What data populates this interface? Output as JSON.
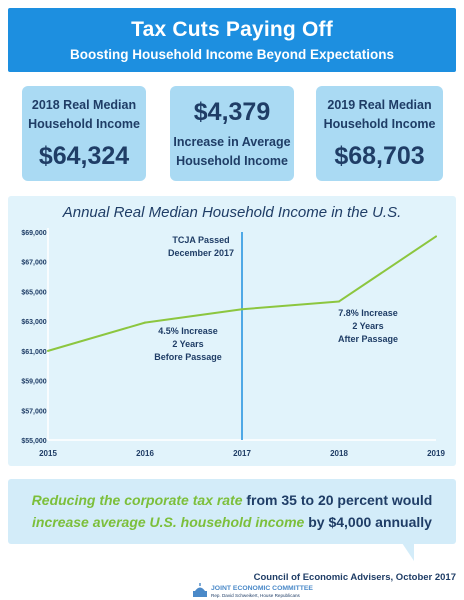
{
  "header": {
    "title": "Tax Cuts Paying Off",
    "subtitle": "Boosting Household Income Beyond Expectations"
  },
  "stats": [
    {
      "label_line1": "2018 Real Median",
      "label_line2": "Household Income",
      "value": "$64,324"
    },
    {
      "value": "$4,379",
      "label_line1": "Increase in Average",
      "label_line2": "Household Income"
    },
    {
      "label_line1": "2019 Real Median",
      "label_line2": "Household Income",
      "value": "$68,703"
    }
  ],
  "chart_data": {
    "type": "line",
    "title": "Annual Real Median Household Income in the U.S.",
    "xlabel": "",
    "ylabel": "",
    "x": [
      2015,
      2016,
      2017,
      2018,
      2019
    ],
    "x_tick_labels": [
      "2015",
      "2016",
      "2017",
      "2018",
      "2019"
    ],
    "series": [
      {
        "values": [
          61000,
          62900,
          63800,
          64324,
          68703
        ]
      }
    ],
    "ylim": [
      55000,
      69000
    ],
    "y_ticks": [
      55000,
      57000,
      59000,
      61000,
      63000,
      65000,
      67000,
      69000
    ],
    "y_tick_labels": [
      "$55,000",
      "$57,000",
      "$59,000",
      "$61,000",
      "$63,000",
      "$65,000",
      "$67,000",
      "$69,000"
    ],
    "marker_x": 2017,
    "annotations": {
      "marker": [
        "TCJA Passed",
        "December 2017"
      ],
      "before": [
        "4.5% Increase",
        "2 Years",
        "Before Passage"
      ],
      "after": [
        "7.8% Increase",
        "2 Years",
        "After Passage"
      ]
    },
    "grid": false,
    "line_color": "#8cc63f",
    "marker_color": "#1d8fe0"
  },
  "bottom": {
    "part1": "Reducing the corporate tax rate",
    "part2": " from 35 to 20 percent would",
    "part3": "increase average U.S. household income",
    "part4": " by $4,000 annually"
  },
  "source": "Council of Economic Advisers, October 2017",
  "logo": {
    "name": "JOINT ECONOMIC COMMITTEE",
    "sub": "Rep. David Schweikert, House Republicans"
  }
}
